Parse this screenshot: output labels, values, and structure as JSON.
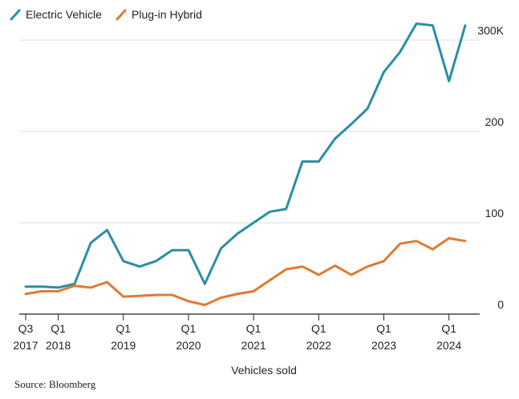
{
  "chart_data": {
    "type": "line",
    "x": [
      "Q3 2017",
      "Q4 2017",
      "Q1 2018",
      "Q2 2018",
      "Q3 2018",
      "Q4 2018",
      "Q1 2019",
      "Q2 2019",
      "Q3 2019",
      "Q4 2019",
      "Q1 2020",
      "Q2 2020",
      "Q3 2020",
      "Q4 2020",
      "Q1 2021",
      "Q2 2021",
      "Q3 2021",
      "Q4 2021",
      "Q1 2022",
      "Q2 2022",
      "Q3 2022",
      "Q4 2022",
      "Q1 2023",
      "Q2 2023",
      "Q3 2023",
      "Q4 2023",
      "Q1 2024",
      "Q2 2024"
    ],
    "series": [
      {
        "name": "Electric Vehicle",
        "color": "#2a8fa3",
        "values": [
          30,
          30,
          29,
          33,
          78,
          92,
          58,
          52,
          58,
          70,
          70,
          33,
          72,
          88,
          100,
          112,
          115,
          167,
          167,
          192,
          208,
          225,
          265,
          287,
          318,
          316,
          255,
          316
        ]
      },
      {
        "name": "Plug-in Hybrid",
        "color": "#e07a32",
        "values": [
          22,
          25,
          25,
          31,
          29,
          35,
          19,
          20,
          21,
          21,
          14,
          10,
          18,
          22,
          25,
          37,
          49,
          52,
          43,
          53,
          43,
          52,
          58,
          77,
          80,
          71,
          83,
          80
        ]
      }
    ],
    "ylim": [
      0,
      330
    ],
    "y_ticks": [
      {
        "value": 0,
        "label": "0"
      },
      {
        "value": 100,
        "label": "100"
      },
      {
        "value": 200,
        "label": "200"
      },
      {
        "value": 300,
        "label": "300K"
      }
    ],
    "x_ticks": [
      {
        "index": 0,
        "line1": "Q3",
        "line2": "2017"
      },
      {
        "index": 2,
        "line1": "Q1",
        "line2": "2018"
      },
      {
        "index": 6,
        "line1": "Q1",
        "line2": "2019"
      },
      {
        "index": 10,
        "line1": "Q1",
        "line2": "2020"
      },
      {
        "index": 14,
        "line1": "Q1",
        "line2": "2021"
      },
      {
        "index": 18,
        "line1": "Q1",
        "line2": "2022"
      },
      {
        "index": 22,
        "line1": "Q1",
        "line2": "2023"
      },
      {
        "index": 26,
        "line1": "Q1",
        "line2": "2024"
      }
    ],
    "xlabel": "Vehicles sold",
    "ylabel": "",
    "title": "",
    "grid": true,
    "legend": "top-left",
    "source": "Source: Bloomberg"
  }
}
